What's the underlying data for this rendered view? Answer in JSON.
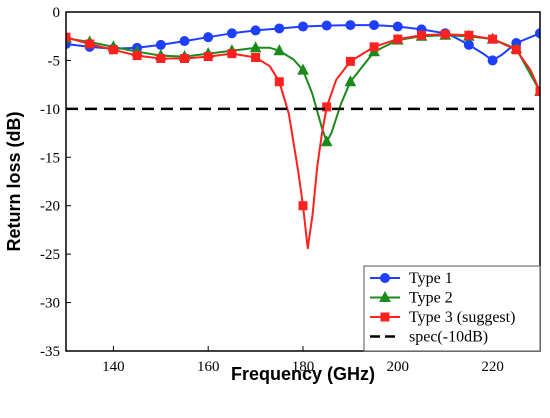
{
  "chart_data": {
    "type": "line",
    "xlabel": "Frequency (GHz)",
    "ylabel": "Return loss (dB)",
    "xlim": [
      130,
      230
    ],
    "ylim": [
      -35,
      0
    ],
    "xticks": [
      140,
      160,
      180,
      200,
      220
    ],
    "yticks": [
      0,
      -5,
      -10,
      -15,
      -20,
      -25,
      -30,
      -35
    ],
    "legend_position": "bottom-right",
    "grid": false,
    "series": [
      {
        "name": "Type 1",
        "color": "#1f3fff",
        "marker": "circle",
        "curve_x": [
          130,
          135,
          140,
          145,
          150,
          155,
          160,
          165,
          170,
          175,
          180,
          185,
          190,
          195,
          200,
          205,
          210,
          212,
          215,
          218,
          220,
          222,
          225,
          228,
          230
        ],
        "curve_y": [
          -3.3,
          -3.6,
          -3.8,
          -3.7,
          -3.4,
          -3.0,
          -2.6,
          -2.2,
          -1.9,
          -1.7,
          -1.5,
          -1.4,
          -1.35,
          -1.35,
          -1.5,
          -1.8,
          -2.2,
          -2.6,
          -3.4,
          -4.3,
          -5.0,
          -4.4,
          -3.2,
          -2.6,
          -2.2
        ],
        "marker_x": [
          130,
          135,
          140,
          145,
          150,
          155,
          160,
          165,
          170,
          175,
          180,
          185,
          190,
          195,
          200,
          205,
          210,
          215,
          220,
          225,
          230
        ],
        "marker_y": [
          -3.3,
          -3.6,
          -3.8,
          -3.7,
          -3.4,
          -3.0,
          -2.6,
          -2.2,
          -1.9,
          -1.7,
          -1.5,
          -1.4,
          -1.35,
          -1.35,
          -1.5,
          -1.8,
          -2.2,
          -3.4,
          -5.0,
          -3.2,
          -2.2
        ]
      },
      {
        "name": "Type 2",
        "color": "#1a8a1a",
        "marker": "triangle",
        "curve_x": [
          130,
          135,
          140,
          145,
          150,
          155,
          160,
          165,
          170,
          173,
          175,
          178,
          180,
          182,
          184,
          185,
          186,
          188,
          190,
          195,
          200,
          205,
          210,
          215,
          220,
          225,
          230
        ],
        "curve_y": [
          -2.7,
          -3.1,
          -3.6,
          -4.1,
          -4.5,
          -4.6,
          -4.3,
          -4.0,
          -3.7,
          -3.7,
          -4.0,
          -4.9,
          -6.0,
          -8.5,
          -12.0,
          -13.4,
          -12.5,
          -9.5,
          -7.2,
          -4.1,
          -2.9,
          -2.5,
          -2.4,
          -2.5,
          -2.8,
          -3.8,
          -8.2
        ],
        "marker_x": [
          130,
          135,
          140,
          145,
          150,
          155,
          160,
          165,
          170,
          175,
          180,
          185,
          190,
          195,
          200,
          205,
          210,
          215,
          220,
          225,
          230
        ],
        "marker_y": [
          -2.7,
          -3.1,
          -3.6,
          -4.1,
          -4.5,
          -4.6,
          -4.3,
          -4.0,
          -3.7,
          -4.0,
          -6.0,
          -13.4,
          -7.2,
          -4.1,
          -2.9,
          -2.5,
          -2.4,
          -2.5,
          -2.8,
          -3.8,
          -8.2
        ]
      },
      {
        "name": "Type 3 (suggest)",
        "color": "#ff2020",
        "marker": "square",
        "curve_x": [
          130,
          135,
          140,
          145,
          150,
          155,
          160,
          165,
          170,
          173,
          175,
          177,
          179,
          180,
          181,
          182,
          183,
          184,
          185,
          187,
          190,
          195,
          200,
          205,
          210,
          215,
          220,
          225,
          228,
          230
        ],
        "curve_y": [
          -2.6,
          -3.3,
          -3.9,
          -4.5,
          -4.8,
          -4.8,
          -4.6,
          -4.3,
          -4.7,
          -5.6,
          -7.2,
          -10.5,
          -16.5,
          -20.0,
          -24.4,
          -21.0,
          -16.0,
          -12.5,
          -9.8,
          -7.0,
          -5.1,
          -3.6,
          -2.8,
          -2.4,
          -2.3,
          -2.4,
          -2.8,
          -3.9,
          -6.0,
          -8.2
        ],
        "marker_x": [
          130,
          135,
          140,
          145,
          150,
          155,
          160,
          165,
          170,
          175,
          180,
          185,
          190,
          195,
          200,
          205,
          210,
          215,
          220,
          225,
          230
        ],
        "marker_y": [
          -2.6,
          -3.3,
          -3.9,
          -4.5,
          -4.8,
          -4.8,
          -4.6,
          -4.3,
          -4.7,
          -7.2,
          -20.0,
          -9.8,
          -5.1,
          -3.6,
          -2.8,
          -2.4,
          -2.3,
          -2.4,
          -2.8,
          -3.9,
          -8.2
        ]
      },
      {
        "name": "spec(-10dB)",
        "color": "#000000",
        "style": "dashed",
        "y": -10
      }
    ]
  }
}
